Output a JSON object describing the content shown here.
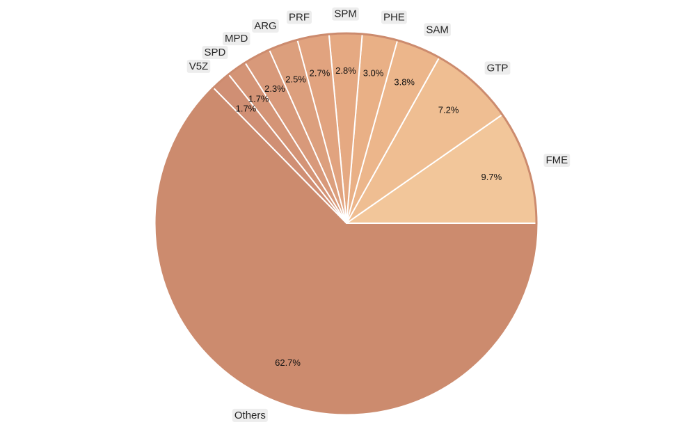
{
  "chart_data": {
    "type": "pie",
    "categories": [
      "FME",
      "GTP",
      "SAM",
      "PHE",
      "SPM",
      "PRF",
      "ARG",
      "MPD",
      "SPD",
      "V5Z",
      "Others"
    ],
    "values": [
      9.7,
      7.2,
      3.8,
      3.0,
      2.8,
      2.7,
      2.5,
      2.3,
      1.7,
      1.7,
      62.7
    ],
    "value_labels": [
      "9.7%",
      "7.2%",
      "3.8%",
      "3.0%",
      "2.8%",
      "2.7%",
      "2.5%",
      "2.3%",
      "1.7%",
      "1.7%",
      "62.7%"
    ],
    "colors": [
      "#f2c69a",
      "#efbe92",
      "#ecb68b",
      "#e9b086",
      "#e5a982",
      "#e1a37f",
      "#dc9f7d",
      "#d8997a",
      "#d49476",
      "#d08f74",
      "#cc8b6e"
    ],
    "start_angle_deg": 0,
    "direction": "counterclockwise",
    "legend": "none",
    "title": ""
  }
}
